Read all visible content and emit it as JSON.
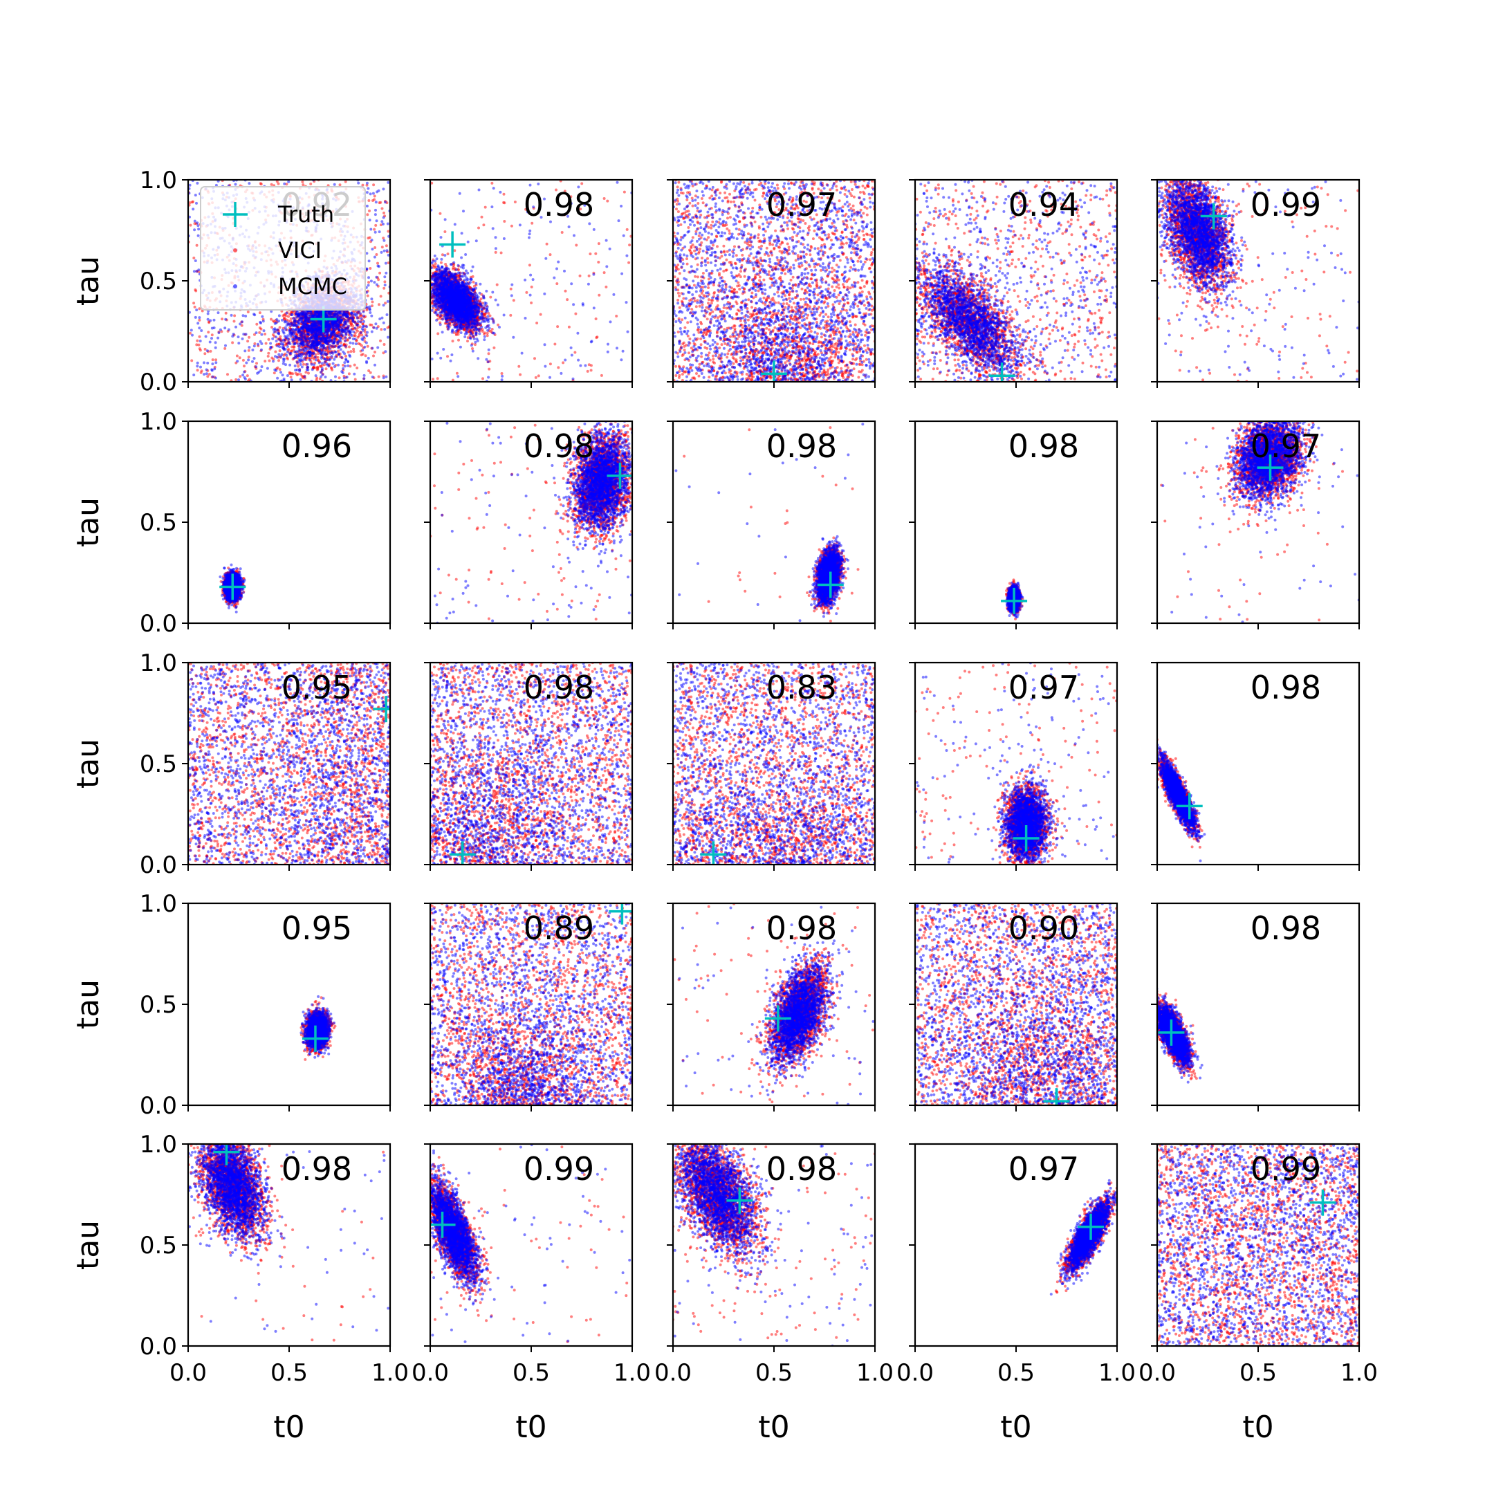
{
  "chart_data": {
    "type": "scatter",
    "grid": false,
    "rows": 5,
    "cols": 5,
    "xlabel": "t0",
    "ylabel": "tau",
    "xlim": [
      0.0,
      1.0
    ],
    "ylim": [
      0.0,
      1.0
    ],
    "xticks": [
      "0.0",
      "0.5",
      "1.0"
    ],
    "yticks": [
      "0.0",
      "0.5",
      "1.0"
    ],
    "colors": {
      "vici": "#ff0000",
      "mcmc": "#0000ff",
      "truth": "#00bfbf"
    },
    "legend": {
      "placement": "upper-left of first panel",
      "entries": [
        {
          "label": "Truth",
          "marker": "plus",
          "color": "#00bfbf"
        },
        {
          "label": "VICI",
          "marker": "dot",
          "color": "#ff0000"
        },
        {
          "label": "MCMC",
          "marker": "dot",
          "color": "#0000ff"
        }
      ]
    },
    "panels": [
      {
        "metric": "0.92",
        "truth": [
          0.67,
          0.31
        ],
        "shape": "blob",
        "cx": 0.66,
        "cy": 0.3,
        "sx": 0.09,
        "sy": 0.1,
        "rho": 0.3,
        "scatter": 0.3
      },
      {
        "metric": "0.98",
        "truth": [
          0.11,
          0.68
        ],
        "shape": "blob",
        "cx": 0.13,
        "cy": 0.4,
        "sx": 0.06,
        "sy": 0.07,
        "rho": -0.5,
        "scatter": 0.05
      },
      {
        "metric": "0.97",
        "truth": [
          0.5,
          0.04
        ],
        "shape": "uniform",
        "cx": 0.55,
        "cy": 0.15,
        "sx": 0.12,
        "sy": 0.12,
        "rho": 0.0,
        "scatter": 0.6
      },
      {
        "metric": "0.94",
        "truth": [
          0.43,
          0.03
        ],
        "shape": "blob",
        "cx": 0.27,
        "cy": 0.3,
        "sx": 0.12,
        "sy": 0.13,
        "rho": -0.6,
        "scatter": 0.25
      },
      {
        "metric": "0.99",
        "truth": [
          0.28,
          0.82
        ],
        "shape": "blob",
        "cx": 0.2,
        "cy": 0.75,
        "sx": 0.08,
        "sy": 0.14,
        "rho": -0.4,
        "scatter": 0.05
      },
      {
        "metric": "0.96",
        "truth": [
          0.22,
          0.18
        ],
        "shape": "blob",
        "cx": 0.22,
        "cy": 0.18,
        "sx": 0.017,
        "sy": 0.03,
        "rho": 0.0,
        "scatter": 0.0
      },
      {
        "metric": "0.98",
        "truth": [
          0.94,
          0.73
        ],
        "shape": "blob",
        "cx": 0.85,
        "cy": 0.7,
        "sx": 0.07,
        "sy": 0.12,
        "rho": 0.2,
        "scatter": 0.05
      },
      {
        "metric": "0.98",
        "truth": [
          0.78,
          0.19
        ],
        "shape": "blob",
        "cx": 0.77,
        "cy": 0.23,
        "sx": 0.027,
        "sy": 0.06,
        "rho": 0.3,
        "scatter": 0.01
      },
      {
        "metric": "0.98",
        "truth": [
          0.49,
          0.11
        ],
        "shape": "blob",
        "cx": 0.49,
        "cy": 0.12,
        "sx": 0.012,
        "sy": 0.025,
        "rho": 0.0,
        "scatter": 0.0
      },
      {
        "metric": "0.97",
        "truth": [
          0.56,
          0.77
        ],
        "shape": "blob",
        "cx": 0.55,
        "cy": 0.82,
        "sx": 0.08,
        "sy": 0.1,
        "rho": 0.2,
        "scatter": 0.02
      },
      {
        "metric": "0.95",
        "truth": [
          0.98,
          0.77
        ],
        "shape": "uniform",
        "cx": 0.85,
        "cy": 0.5,
        "sx": 0.15,
        "sy": 0.3,
        "rho": 0.0,
        "scatter": 0.55
      },
      {
        "metric": "0.98",
        "truth": [
          0.16,
          0.05
        ],
        "shape": "uniform",
        "cx": 0.25,
        "cy": 0.2,
        "sx": 0.15,
        "sy": 0.15,
        "rho": 0.0,
        "scatter": 0.65
      },
      {
        "metric": "0.83",
        "truth": [
          0.2,
          0.05
        ],
        "shape": "uniform",
        "cx": 0.5,
        "cy": 0.15,
        "sx": 0.25,
        "sy": 0.1,
        "rho": 0.0,
        "scatter": 0.65
      },
      {
        "metric": "0.97",
        "truth": [
          0.55,
          0.13
        ],
        "shape": "blob",
        "cx": 0.55,
        "cy": 0.2,
        "sx": 0.05,
        "sy": 0.09,
        "rho": 0.0,
        "scatter": 0.06
      },
      {
        "metric": "0.98",
        "truth": [
          0.16,
          0.29
        ],
        "shape": "blob",
        "cx": 0.1,
        "cy": 0.35,
        "sx": 0.04,
        "sy": 0.08,
        "rho": -0.85,
        "scatter": 0.0
      },
      {
        "metric": "0.95",
        "truth": [
          0.63,
          0.33
        ],
        "shape": "blob",
        "cx": 0.64,
        "cy": 0.37,
        "sx": 0.025,
        "sy": 0.04,
        "rho": 0.1,
        "scatter": 0.0
      },
      {
        "metric": "0.89",
        "truth": [
          0.95,
          0.96
        ],
        "shape": "uniform",
        "cx": 0.45,
        "cy": 0.1,
        "sx": 0.12,
        "sy": 0.12,
        "rho": 0.0,
        "scatter": 0.6
      },
      {
        "metric": "0.98",
        "truth": [
          0.52,
          0.43
        ],
        "shape": "blob",
        "cx": 0.62,
        "cy": 0.45,
        "sx": 0.07,
        "sy": 0.12,
        "rho": 0.5,
        "scatter": 0.03
      },
      {
        "metric": "0.90",
        "truth": [
          0.7,
          0.02
        ],
        "shape": "uniform",
        "cx": 0.65,
        "cy": 0.2,
        "sx": 0.15,
        "sy": 0.15,
        "rho": 0.0,
        "scatter": 0.5
      },
      {
        "metric": "0.98",
        "truth": [
          0.07,
          0.36
        ],
        "shape": "blob",
        "cx": 0.08,
        "cy": 0.35,
        "sx": 0.04,
        "sy": 0.07,
        "rho": -0.7,
        "scatter": 0.0
      },
      {
        "metric": "0.98",
        "truth": [
          0.19,
          0.96
        ],
        "shape": "blob",
        "cx": 0.22,
        "cy": 0.8,
        "sx": 0.08,
        "sy": 0.13,
        "rho": -0.4,
        "scatter": 0.02
      },
      {
        "metric": "0.99",
        "truth": [
          0.06,
          0.6
        ],
        "shape": "blob",
        "cx": 0.11,
        "cy": 0.57,
        "sx": 0.06,
        "sy": 0.12,
        "rho": -0.7,
        "scatter": 0.02
      },
      {
        "metric": "0.98",
        "truth": [
          0.33,
          0.72
        ],
        "shape": "blob",
        "cx": 0.22,
        "cy": 0.75,
        "sx": 0.1,
        "sy": 0.14,
        "rho": -0.5,
        "scatter": 0.04
      },
      {
        "metric": "0.97",
        "truth": [
          0.87,
          0.59
        ],
        "shape": "blob",
        "cx": 0.86,
        "cy": 0.55,
        "sx": 0.05,
        "sy": 0.08,
        "rho": 0.8,
        "scatter": 0.0
      },
      {
        "metric": "0.99",
        "truth": [
          0.82,
          0.71
        ],
        "shape": "uniform",
        "cx": 0.5,
        "cy": 0.5,
        "sx": 0.3,
        "sy": 0.3,
        "rho": 0.0,
        "scatter": 0.95
      }
    ]
  }
}
